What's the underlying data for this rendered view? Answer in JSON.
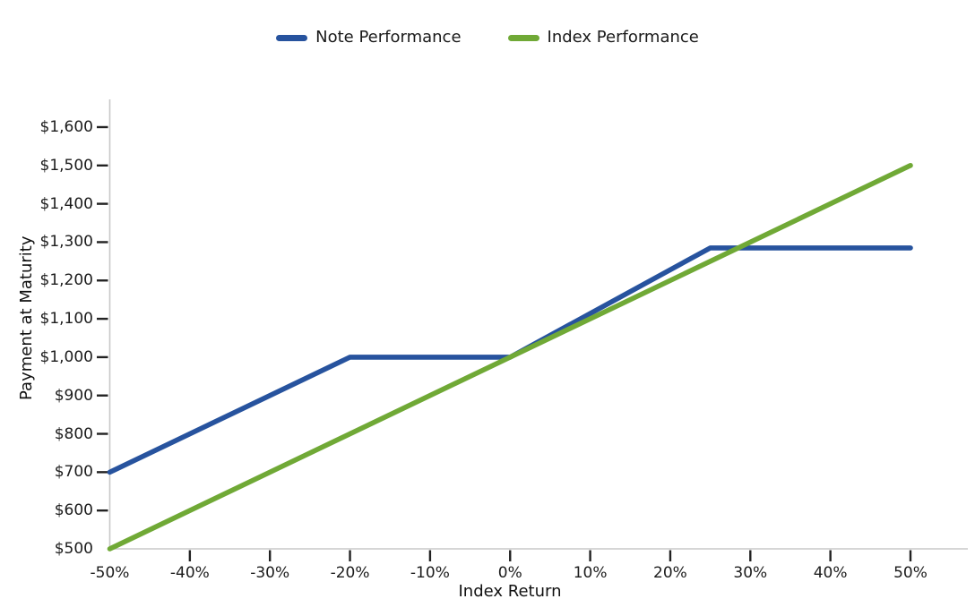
{
  "chart_data": {
    "type": "line",
    "title": "",
    "xlabel": "Index Return",
    "ylabel": "Payment at Maturity",
    "grid": false,
    "legend_position": "top-center",
    "xlim_pct": [
      -50,
      57
    ],
    "ylim_usd": [
      500,
      1670
    ],
    "x_ticks": [
      -50,
      -40,
      -30,
      -20,
      -10,
      0,
      10,
      20,
      30,
      40,
      50
    ],
    "x_tick_labels": [
      "-50%",
      "-40%",
      "-30%",
      "-20%",
      "-10%",
      "0%",
      "10%",
      "20%",
      "30%",
      "40%",
      "50%"
    ],
    "y_ticks": [
      500,
      600,
      700,
      800,
      900,
      1000,
      1100,
      1200,
      1300,
      1400,
      1500,
      1600
    ],
    "y_tick_labels": [
      "$500",
      "$600",
      "$700",
      "$800",
      "$900",
      "$1,000",
      "$1,100",
      "$1,200",
      "$1,300",
      "$1,400",
      "$1,500",
      "$1,600"
    ],
    "series": [
      {
        "name": "Note Performance",
        "color": "#27539E",
        "points": [
          [
            -50,
            700
          ],
          [
            -20,
            1000
          ],
          [
            0,
            1000
          ],
          [
            25,
            1285
          ],
          [
            50,
            1285
          ]
        ]
      },
      {
        "name": "Index Performance",
        "color": "#70A936",
        "points": [
          [
            -50,
            500
          ],
          [
            50,
            1500
          ]
        ]
      }
    ],
    "axis_colors": {
      "spine": "#c8c8c8",
      "tick": "#222222"
    }
  }
}
